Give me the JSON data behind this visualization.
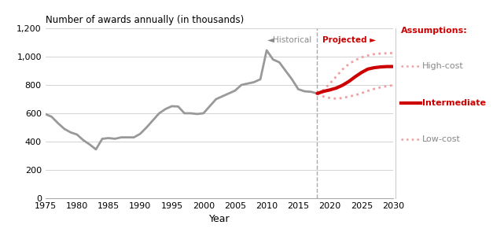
{
  "title": "Number of awards annually (in thousands)",
  "xlabel": "Year",
  "ylim": [
    0,
    1200
  ],
  "yticks": [
    0,
    200,
    400,
    600,
    800,
    1000,
    1200
  ],
  "xlim": [
    1975,
    2030
  ],
  "xticks": [
    1975,
    1980,
    1985,
    1990,
    1995,
    2000,
    2005,
    2010,
    2015,
    2020,
    2025,
    2030
  ],
  "divider_year": 2018,
  "historical_color": "#999999",
  "intermediate_color": "#cc0000",
  "highlow_color": "#f0a0a0",
  "background_color": "#ffffff",
  "historical_label": "◄Historical",
  "projected_label": "Projected ►",
  "assumptions_label": "Assumptions:",
  "high_cost_label": "High-cost",
  "intermediate_legend_label": "Intermediate",
  "low_cost_label": "Low-cost",
  "historical_data": {
    "years": [
      1975,
      1976,
      1977,
      1978,
      1979,
      1980,
      1981,
      1982,
      1983,
      1984,
      1985,
      1986,
      1987,
      1988,
      1989,
      1990,
      1991,
      1992,
      1993,
      1994,
      1995,
      1996,
      1997,
      1998,
      1999,
      2000,
      2001,
      2002,
      2003,
      2004,
      2005,
      2006,
      2007,
      2008,
      2009,
      2010,
      2011,
      2012,
      2013,
      2014,
      2015,
      2016,
      2017,
      2018
    ],
    "values": [
      595,
      575,
      530,
      490,
      465,
      450,
      410,
      380,
      345,
      420,
      425,
      420,
      430,
      430,
      430,
      455,
      500,
      550,
      600,
      630,
      650,
      648,
      600,
      600,
      595,
      600,
      650,
      700,
      720,
      740,
      760,
      800,
      810,
      820,
      840,
      1045,
      980,
      960,
      900,
      840,
      770,
      755,
      752,
      740
    ]
  },
  "projected_intermediate": {
    "years": [
      2018,
      2019,
      2020,
      2021,
      2022,
      2023,
      2024,
      2025,
      2026,
      2027,
      2028,
      2029,
      2030
    ],
    "values": [
      740,
      755,
      765,
      778,
      798,
      825,
      858,
      888,
      912,
      922,
      927,
      930,
      930
    ]
  },
  "projected_high": {
    "years": [
      2018,
      2019,
      2020,
      2021,
      2022,
      2023,
      2024,
      2025,
      2026,
      2027,
      2028,
      2029,
      2030
    ],
    "values": [
      740,
      765,
      810,
      860,
      910,
      948,
      975,
      995,
      1008,
      1018,
      1022,
      1024,
      1025
    ]
  },
  "projected_low": {
    "years": [
      2018,
      2019,
      2020,
      2021,
      2022,
      2023,
      2024,
      2025,
      2026,
      2027,
      2028,
      2029,
      2030
    ],
    "values": [
      740,
      718,
      708,
      703,
      708,
      718,
      728,
      742,
      758,
      772,
      783,
      792,
      798
    ]
  }
}
